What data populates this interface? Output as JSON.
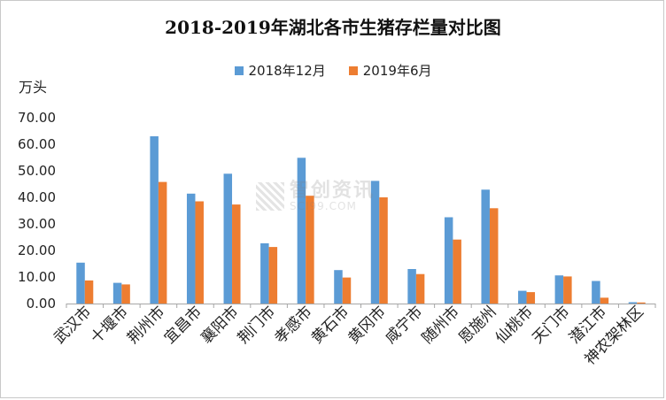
{
  "chart_data": {
    "type": "bar",
    "title": "2018-2019年湖北各市生猪存栏量对比图",
    "ylabel": "万头",
    "xlabel": "",
    "ylim": [
      0,
      70
    ],
    "yticks": [
      "0.00",
      "10.00",
      "20.00",
      "30.00",
      "40.00",
      "50.00",
      "60.00",
      "70.00"
    ],
    "grid": false,
    "legend_position": "top",
    "categories": [
      "武汉市",
      "十堰市",
      "荆州市",
      "宜昌市",
      "襄阳市",
      "荆门市",
      "孝感市",
      "黄石市",
      "黄冈市",
      "咸宁市",
      "随州市",
      "恩施州",
      "仙桃市",
      "天门市",
      "潜江市",
      "神农架林区"
    ],
    "series": [
      {
        "name": "2018年12月",
        "color": "#5B9BD5",
        "values": [
          15.4,
          7.8,
          63.0,
          41.4,
          48.9,
          22.7,
          54.9,
          12.6,
          46.2,
          13.0,
          32.5,
          42.9,
          4.8,
          10.6,
          8.5,
          0.5
        ]
      },
      {
        "name": "2019年6月",
        "color": "#ED7D31",
        "values": [
          8.7,
          7.2,
          45.8,
          38.5,
          37.3,
          21.3,
          40.6,
          9.8,
          40.0,
          11.1,
          24.1,
          35.9,
          4.3,
          10.2,
          2.2,
          0.4
        ]
      }
    ]
  },
  "watermark": {
    "main": "智创资讯",
    "sub": "SCI99.COM"
  }
}
